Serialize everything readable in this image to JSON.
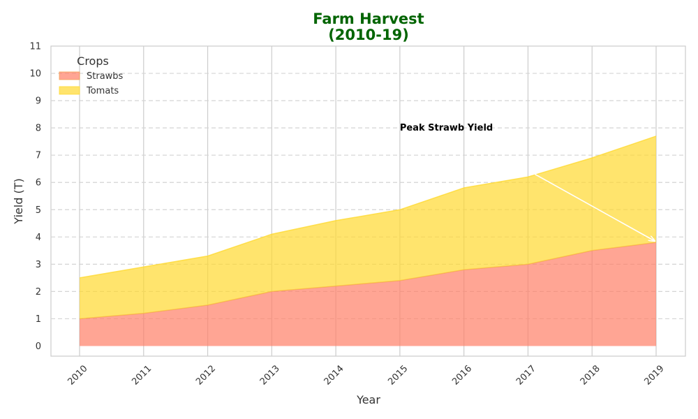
{
  "chart_data": {
    "type": "area",
    "stacked": true,
    "title_lines": [
      "Farm Harvest",
      "(2010-19)"
    ],
    "xlabel": "Year",
    "ylabel": "Yield (T)",
    "x": [
      "2010",
      "2011",
      "2012",
      "2013",
      "2014",
      "2015",
      "2016",
      "2017",
      "2018",
      "2019"
    ],
    "ylim": [
      0,
      11
    ],
    "yticks": [
      "0",
      "1",
      "2",
      "3",
      "4",
      "5",
      "6",
      "7",
      "8",
      "9",
      "10",
      "11"
    ],
    "grid": "vertical solid, horizontal dashed",
    "legend": {
      "title": "Crops",
      "position": "top-left"
    },
    "series": [
      {
        "name": "Strawbs",
        "values": [
          1.0,
          1.2,
          1.5,
          2.0,
          2.2,
          2.4,
          2.8,
          3.0,
          3.5,
          3.8
        ],
        "color": "#ff7f66",
        "line_color": "#f5a050"
      },
      {
        "name": "Tomats",
        "values": [
          1.5,
          1.7,
          1.8,
          2.1,
          2.4,
          2.6,
          3.0,
          3.2,
          3.4,
          3.9
        ],
        "color": "#ffd92f",
        "line_color": "#ffd92f"
      }
    ],
    "annotation": {
      "text": "Peak Strawb Yield",
      "text_x": "2015",
      "text_y": 8.0,
      "arrow_from_x": "2017",
      "arrow_from_y": 6.3,
      "arrow_to_x": "2019",
      "arrow_to_y": 3.8
    }
  }
}
